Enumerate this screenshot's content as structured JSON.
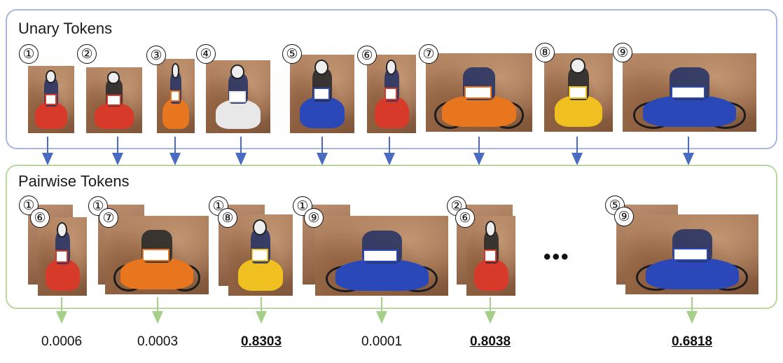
{
  "unary": {
    "title": "Unary Tokens",
    "tokens": [
      {
        "label": "①"
      },
      {
        "label": "②"
      },
      {
        "label": "③"
      },
      {
        "label": "④"
      },
      {
        "label": "⑤"
      },
      {
        "label": "⑥"
      },
      {
        "label": "⑦"
      },
      {
        "label": "⑧"
      },
      {
        "label": "⑨"
      }
    ]
  },
  "pairwise": {
    "title": "Pairwise Tokens",
    "pairs": [
      {
        "first": "①",
        "second": "⑥",
        "score": "0.0006",
        "highlight": false
      },
      {
        "first": "①",
        "second": "⑦",
        "score": "0.0003",
        "highlight": false
      },
      {
        "first": "①",
        "second": "⑧",
        "score": "0.8303",
        "highlight": true
      },
      {
        "first": "①",
        "second": "⑨",
        "score": "0.0001",
        "highlight": false
      },
      {
        "first": "②",
        "second": "⑥",
        "score": "0.8038",
        "highlight": true
      },
      {
        "first": "⑤",
        "second": "⑨",
        "score": "0.6818",
        "highlight": true
      }
    ],
    "ellipsis": "•••"
  },
  "colors": {
    "unary_border": "#a8b8e0",
    "pairwise_border": "#b8d8a0",
    "unary_arrow": "#4a6cc0",
    "pairwise_arrow": "#a6cf8a",
    "bike_colors": [
      "#d83a2a",
      "#d83a2a",
      "#e8761e",
      "#e8e8e8",
      "#2a48b8",
      "#d83a2a",
      "#e8761e",
      "#f0c020",
      "#2a48b8"
    ]
  }
}
